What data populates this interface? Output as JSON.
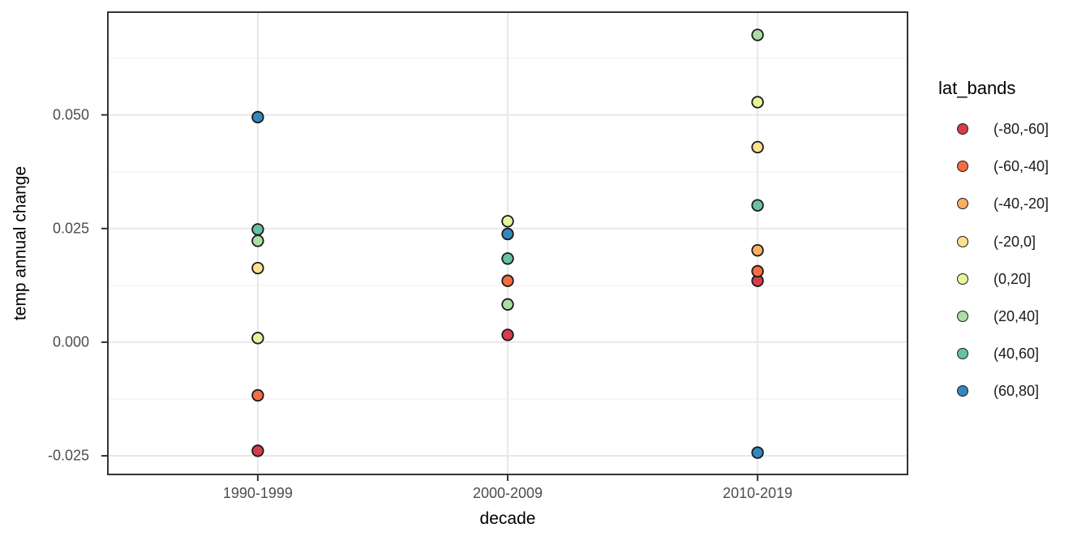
{
  "chart_data": {
    "type": "scatter",
    "title": "",
    "xlabel": "decade",
    "ylabel": "temp annual change",
    "categories": [
      "1990-1999",
      "2000-2009",
      "2010-2019"
    ],
    "y_axis": {
      "ticks": [
        0.05,
        0.025,
        0.0,
        -0.025
      ],
      "tick_labels": [
        "0.050",
        "0.025",
        "0.000",
        "-0.025"
      ],
      "minor_ticks": [
        0.0625,
        0.0375,
        0.0125,
        -0.0125
      ],
      "range": [
        -0.0291,
        0.0726
      ],
      "grid": "on"
    },
    "legend": {
      "title": "lat_bands",
      "position": "right",
      "entries": [
        {
          "label": "(-80,-60]",
          "color": "#D53E4F"
        },
        {
          "label": "(-60,-40]",
          "color": "#F46D43"
        },
        {
          "label": "(-40,-20]",
          "color": "#FDAE61"
        },
        {
          "label": "(-20,0]",
          "color": "#FEE08B"
        },
        {
          "label": "(0,20]",
          "color": "#E6F598"
        },
        {
          "label": "(20,40]",
          "color": "#ABDDA4"
        },
        {
          "label": "(40,60]",
          "color": "#66C2A5"
        },
        {
          "label": "(60,80]",
          "color": "#3288BD"
        }
      ]
    },
    "series": [
      {
        "name": "(-80,-60]",
        "color": "#D53E4F",
        "points": [
          {
            "x": "1990-1999",
            "y": -0.0239
          },
          {
            "x": "2000-2009",
            "y": 0.0016
          },
          {
            "x": "2010-2019",
            "y": 0.0135
          }
        ]
      },
      {
        "name": "(-60,-40]",
        "color": "#F46D43",
        "points": [
          {
            "x": "1990-1999",
            "y": -0.0117
          },
          {
            "x": "2000-2009",
            "y": 0.0135
          },
          {
            "x": "2010-2019",
            "y": 0.0156
          }
        ]
      },
      {
        "name": "(-40,-20]",
        "color": "#FDAE61",
        "points": [
          {
            "x": "2010-2019",
            "y": 0.0202
          }
        ]
      },
      {
        "name": "(-20,0]",
        "color": "#FEE08B",
        "points": [
          {
            "x": "1990-1999",
            "y": 0.0163
          },
          {
            "x": "2010-2019",
            "y": 0.0429
          }
        ]
      },
      {
        "name": "(0,20]",
        "color": "#E6F598",
        "points": [
          {
            "x": "1990-1999",
            "y": 0.0009
          },
          {
            "x": "2000-2009",
            "y": 0.0266
          },
          {
            "x": "2010-2019",
            "y": 0.0528
          }
        ]
      },
      {
        "name": "(20,40]",
        "color": "#ABDDA4",
        "points": [
          {
            "x": "1990-1999",
            "y": 0.0223
          },
          {
            "x": "2000-2009",
            "y": 0.0083
          },
          {
            "x": "2010-2019",
            "y": 0.0676
          }
        ]
      },
      {
        "name": "(40,60]",
        "color": "#66C2A5",
        "points": [
          {
            "x": "1990-1999",
            "y": 0.0248
          },
          {
            "x": "2000-2009",
            "y": 0.0184
          },
          {
            "x": "2010-2019",
            "y": 0.0301
          }
        ]
      },
      {
        "name": "(60,80]",
        "color": "#3288BD",
        "points": [
          {
            "x": "1990-1999",
            "y": 0.0495
          },
          {
            "x": "2000-2009",
            "y": 0.0238
          },
          {
            "x": "2010-2019",
            "y": -0.0243
          }
        ]
      }
    ],
    "style_colors": {
      "panel_border": "#333333",
      "grid_major": "#E8E8E8",
      "grid_minor": "#F2F2F2",
      "tick_mark": "#333333",
      "axis_text": "#4D4D4D",
      "point_stroke": "#1A1A1A"
    }
  }
}
